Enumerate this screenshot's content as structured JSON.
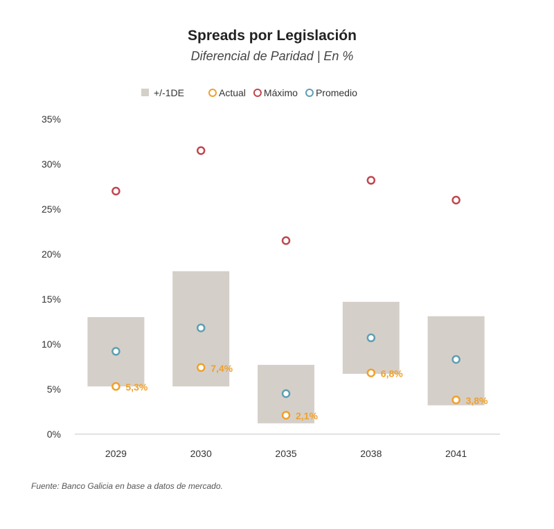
{
  "chart_data": {
    "type": "scatter",
    "title": "Spreads por Legislación",
    "subtitle": "Diferencial de Paridad | En %",
    "source": "Fuente: Banco Galicia en base a datos de mercado.",
    "xlabel": "",
    "ylabel": "",
    "ylim": [
      0,
      35
    ],
    "yticks": [
      "0%",
      "5%",
      "10%",
      "15%",
      "20%",
      "25%",
      "30%",
      "35%"
    ],
    "ytick_values": [
      0,
      5,
      10,
      15,
      20,
      25,
      30,
      35
    ],
    "grid": false,
    "legend_position": "top",
    "categories": [
      "2029",
      "2030",
      "2035",
      "2038",
      "2041"
    ],
    "band": {
      "name": "+/-1DE",
      "low": [
        5.3,
        5.3,
        1.2,
        6.7,
        3.2
      ],
      "high": [
        13.0,
        18.1,
        7.7,
        14.7,
        13.1
      ],
      "color": "#d5cfc9"
    },
    "series": [
      {
        "name": "Actual",
        "values": [
          5.3,
          7.4,
          2.1,
          6.8,
          3.8
        ],
        "labels": [
          "5,3%",
          "7,4%",
          "2,1%",
          "6,8%",
          "3,8%"
        ],
        "color": "#f0a02a"
      },
      {
        "name": "Máximo",
        "values": [
          27.0,
          31.5,
          21.5,
          28.2,
          26.0
        ],
        "color": "#c0474f"
      },
      {
        "name": "Promedio",
        "values": [
          9.2,
          11.8,
          4.5,
          10.7,
          8.3
        ],
        "color": "#5e9fb2"
      }
    ]
  }
}
